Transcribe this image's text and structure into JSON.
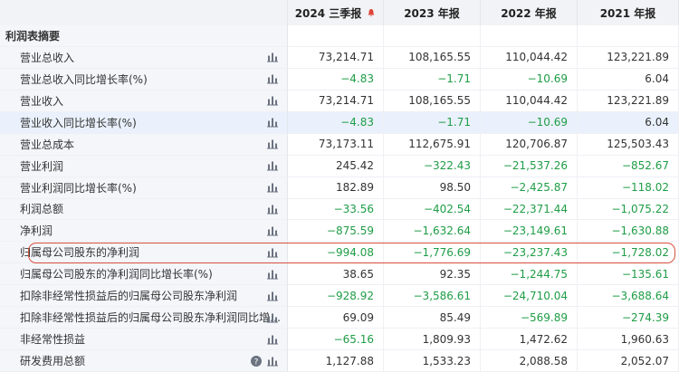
{
  "header": {
    "label": "",
    "columns": [
      "2024 三季报",
      "2023 年报",
      "2022 年报",
      "2021 年报"
    ]
  },
  "table": {
    "section": "利润表摘要",
    "rows": [
      {
        "label": "营业总收入",
        "values": [
          "73,214.71",
          "108,165.55",
          "110,044.42",
          "123,221.89"
        ]
      },
      {
        "label": "营业总收入同比增长率(%)",
        "values": [
          "−4.83",
          "−1.71",
          "−10.69",
          "6.04"
        ]
      },
      {
        "label": "营业收入",
        "values": [
          "73,214.71",
          "108,165.55",
          "110,044.42",
          "123,221.89"
        ]
      },
      {
        "label": "营业收入同比增长率(%)",
        "values": [
          "−4.83",
          "−1.71",
          "−10.69",
          "6.04"
        ]
      },
      {
        "label": "营业总成本",
        "values": [
          "73,173.11",
          "112,675.91",
          "120,706.87",
          "125,503.43"
        ]
      },
      {
        "label": "营业利润",
        "values": [
          "245.42",
          "−322.43",
          "−21,537.26",
          "−852.67"
        ]
      },
      {
        "label": "营业利润同比增长率(%)",
        "values": [
          "182.89",
          "98.50",
          "−2,425.87",
          "−118.02"
        ]
      },
      {
        "label": "利润总额",
        "values": [
          "−33.56",
          "−402.54",
          "−22,371.44",
          "−1,075.22"
        ]
      },
      {
        "label": "净利润",
        "values": [
          "−875.59",
          "−1,632.64",
          "−23,149.61",
          "−1,630.88"
        ]
      },
      {
        "label": "归属母公司股东的净利润",
        "values": [
          "−994.08",
          "−1,776.69",
          "−23,237.43",
          "−1,728.02"
        ]
      },
      {
        "label": "归属母公司股东的净利润同比增长率(%)",
        "values": [
          "38.65",
          "92.35",
          "−1,244.75",
          "−135.61"
        ]
      },
      {
        "label": "扣除非经常性损益后的归属母公司股东净利润",
        "values": [
          "−928.92",
          "−3,586.61",
          "−24,710.04",
          "−3,688.64"
        ]
      },
      {
        "label": "扣除非经常性损益后的归属母公司股东净利润同比增…",
        "values": [
          "69.09",
          "85.49",
          "−569.89",
          "−274.39"
        ]
      },
      {
        "label": "非经常性损益",
        "values": [
          "−65.16",
          "1,809.93",
          "1,472.62",
          "1,960.63"
        ]
      },
      {
        "label": "研发费用总额",
        "values": [
          "1,127.88",
          "1,533.23",
          "2,088.58",
          "2,052.07"
        ]
      }
    ]
  }
}
